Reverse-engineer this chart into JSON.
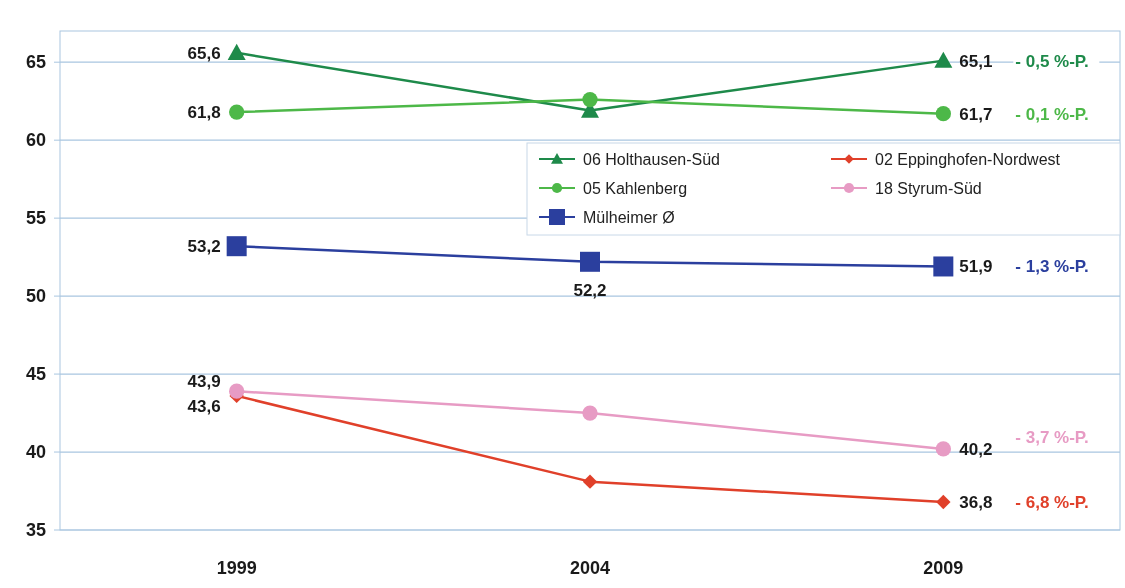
{
  "chart_data": {
    "type": "line",
    "categories": [
      "1999",
      "2004",
      "2009"
    ],
    "ylim": [
      35,
      67
    ],
    "yticks": [
      35,
      40,
      45,
      50,
      55,
      60,
      65
    ],
    "grid": "y",
    "legend": "right",
    "series": [
      {
        "name": "06 Holthausen-Süd",
        "color": "#1e8a4a",
        "marker": "triangle",
        "values": [
          65.6,
          61.9,
          65.1
        ],
        "value_labels": [
          "65,6",
          null,
          "65,1"
        ]
      },
      {
        "name": "05 Kahlenberg",
        "color": "#4db848",
        "marker": "circle",
        "values": [
          61.8,
          62.6,
          61.7
        ],
        "value_labels": [
          "61,8",
          null,
          "61,7"
        ]
      },
      {
        "name": "Mülheimer Ø",
        "color": "#2b3f9e",
        "marker": "square",
        "values": [
          53.2,
          52.2,
          51.9
        ],
        "value_labels": [
          "53,2",
          "52,2",
          "51,9"
        ]
      },
      {
        "name": "02 Eppinghofen-Nordwest",
        "color": "#e0402a",
        "marker": "diamond",
        "values": [
          43.6,
          38.1,
          36.8
        ],
        "value_labels": [
          "43,6",
          null,
          "36,8"
        ]
      },
      {
        "name": "18 Styrum-Süd",
        "color": "#e79bc4",
        "marker": "circle",
        "values": [
          43.9,
          42.5,
          40.2
        ],
        "value_labels": [
          "43,9",
          null,
          "40,2"
        ]
      }
    ],
    "annotations": [
      "- 0,5 %-P.",
      "- 0,1 %-P.",
      "- 1,3 %-P.",
      "- 6,8 %-P.",
      "- 3,7 %-P."
    ]
  }
}
